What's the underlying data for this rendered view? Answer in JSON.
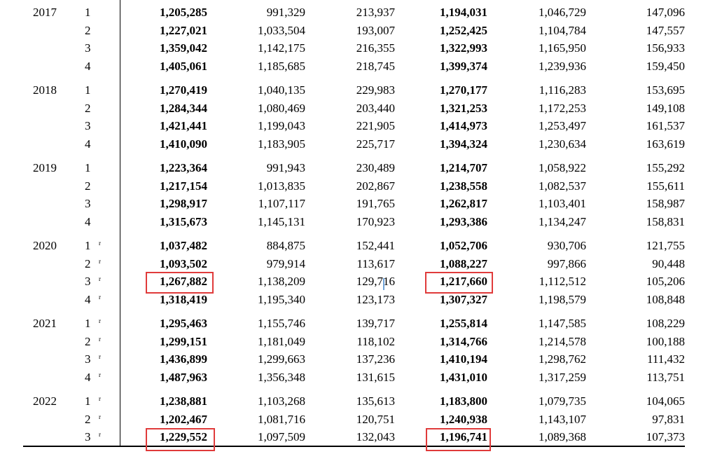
{
  "colors": {
    "highlight": "#e03b3b",
    "text": "#000000",
    "caret": "#6fa3d8"
  },
  "groups": [
    {
      "year": "2017",
      "rows": [
        {
          "q": "1",
          "r": "",
          "v": [
            "1,205,285",
            "991,329",
            "213,937",
            "1,194,031",
            "1,046,729",
            "147,096"
          ]
        },
        {
          "q": "2",
          "r": "",
          "v": [
            "1,227,021",
            "1,033,504",
            "193,007",
            "1,252,425",
            "1,104,784",
            "147,557"
          ]
        },
        {
          "q": "3",
          "r": "",
          "v": [
            "1,359,042",
            "1,142,175",
            "216,355",
            "1,322,993",
            "1,165,950",
            "156,933"
          ]
        },
        {
          "q": "4",
          "r": "",
          "v": [
            "1,405,061",
            "1,185,685",
            "218,745",
            "1,399,374",
            "1,239,936",
            "159,450"
          ]
        }
      ]
    },
    {
      "year": "2018",
      "rows": [
        {
          "q": "1",
          "r": "",
          "v": [
            "1,270,419",
            "1,040,135",
            "229,983",
            "1,270,177",
            "1,116,283",
            "153,695"
          ]
        },
        {
          "q": "2",
          "r": "",
          "v": [
            "1,284,344",
            "1,080,469",
            "203,440",
            "1,321,253",
            "1,172,253",
            "149,108"
          ]
        },
        {
          "q": "3",
          "r": "",
          "v": [
            "1,421,441",
            "1,199,043",
            "221,905",
            "1,414,973",
            "1,253,497",
            "161,537"
          ]
        },
        {
          "q": "4",
          "r": "",
          "v": [
            "1,410,090",
            "1,183,905",
            "225,717",
            "1,394,324",
            "1,230,634",
            "163,619"
          ]
        }
      ]
    },
    {
      "year": "2019",
      "rows": [
        {
          "q": "1",
          "r": "",
          "v": [
            "1,223,364",
            "991,943",
            "230,489",
            "1,214,707",
            "1,058,922",
            "155,292"
          ]
        },
        {
          "q": "2",
          "r": "",
          "v": [
            "1,217,154",
            "1,013,835",
            "202,867",
            "1,238,558",
            "1,082,537",
            "155,611"
          ]
        },
        {
          "q": "3",
          "r": "",
          "v": [
            "1,298,917",
            "1,107,117",
            "191,765",
            "1,262,817",
            "1,103,401",
            "158,987"
          ]
        },
        {
          "q": "4",
          "r": "",
          "v": [
            "1,315,673",
            "1,145,131",
            "170,923",
            "1,293,386",
            "1,134,247",
            "158,831"
          ]
        }
      ]
    },
    {
      "year": "2020",
      "rows": [
        {
          "q": "1",
          "r": "r",
          "v": [
            "1,037,482",
            "884,875",
            "152,441",
            "1,052,706",
            "930,706",
            "121,755"
          ]
        },
        {
          "q": "2",
          "r": "r",
          "v": [
            "1,093,502",
            "979,914",
            "113,617",
            "1,088,227",
            "997,866",
            "90,448"
          ]
        },
        {
          "q": "3",
          "r": "r",
          "v": [
            "1,267,882",
            "1,138,209",
            "129,716",
            "1,217,660",
            "1,112,512",
            "105,206"
          ]
        },
        {
          "q": "4",
          "r": "r",
          "v": [
            "1,318,419",
            "1,195,340",
            "123,173",
            "1,307,327",
            "1,198,579",
            "108,848"
          ]
        }
      ]
    },
    {
      "year": "2021",
      "rows": [
        {
          "q": "1",
          "r": "r",
          "v": [
            "1,295,463",
            "1,155,746",
            "139,717",
            "1,255,814",
            "1,147,585",
            "108,229"
          ]
        },
        {
          "q": "2",
          "r": "r",
          "v": [
            "1,299,151",
            "1,181,049",
            "118,102",
            "1,314,766",
            "1,214,578",
            "100,188"
          ]
        },
        {
          "q": "3",
          "r": "r",
          "v": [
            "1,436,899",
            "1,299,663",
            "137,236",
            "1,410,194",
            "1,298,762",
            "111,432"
          ]
        },
        {
          "q": "4",
          "r": "r",
          "v": [
            "1,487,963",
            "1,356,348",
            "131,615",
            "1,431,010",
            "1,317,259",
            "113,751"
          ]
        }
      ]
    },
    {
      "year": "2022",
      "rows": [
        {
          "q": "1",
          "r": "r",
          "v": [
            "1,238,881",
            "1,103,268",
            "135,613",
            "1,183,800",
            "1,079,735",
            "104,065"
          ]
        },
        {
          "q": "2",
          "r": "r",
          "v": [
            "1,202,467",
            "1,081,716",
            "120,751",
            "1,240,938",
            "1,143,107",
            "97,831"
          ]
        },
        {
          "q": "3",
          "r": "r",
          "v": [
            "1,229,552",
            "1,097,509",
            "132,043",
            "1,196,741",
            "1,089,368",
            "107,373"
          ]
        }
      ]
    }
  ],
  "highlighted_cells": [
    {
      "year": "2020",
      "q": "3",
      "column": 1
    },
    {
      "year": "2020",
      "q": "3",
      "column": 4
    },
    {
      "year": "2022",
      "q": "3",
      "column": 1
    },
    {
      "year": "2022",
      "q": "3",
      "column": 4
    }
  ]
}
